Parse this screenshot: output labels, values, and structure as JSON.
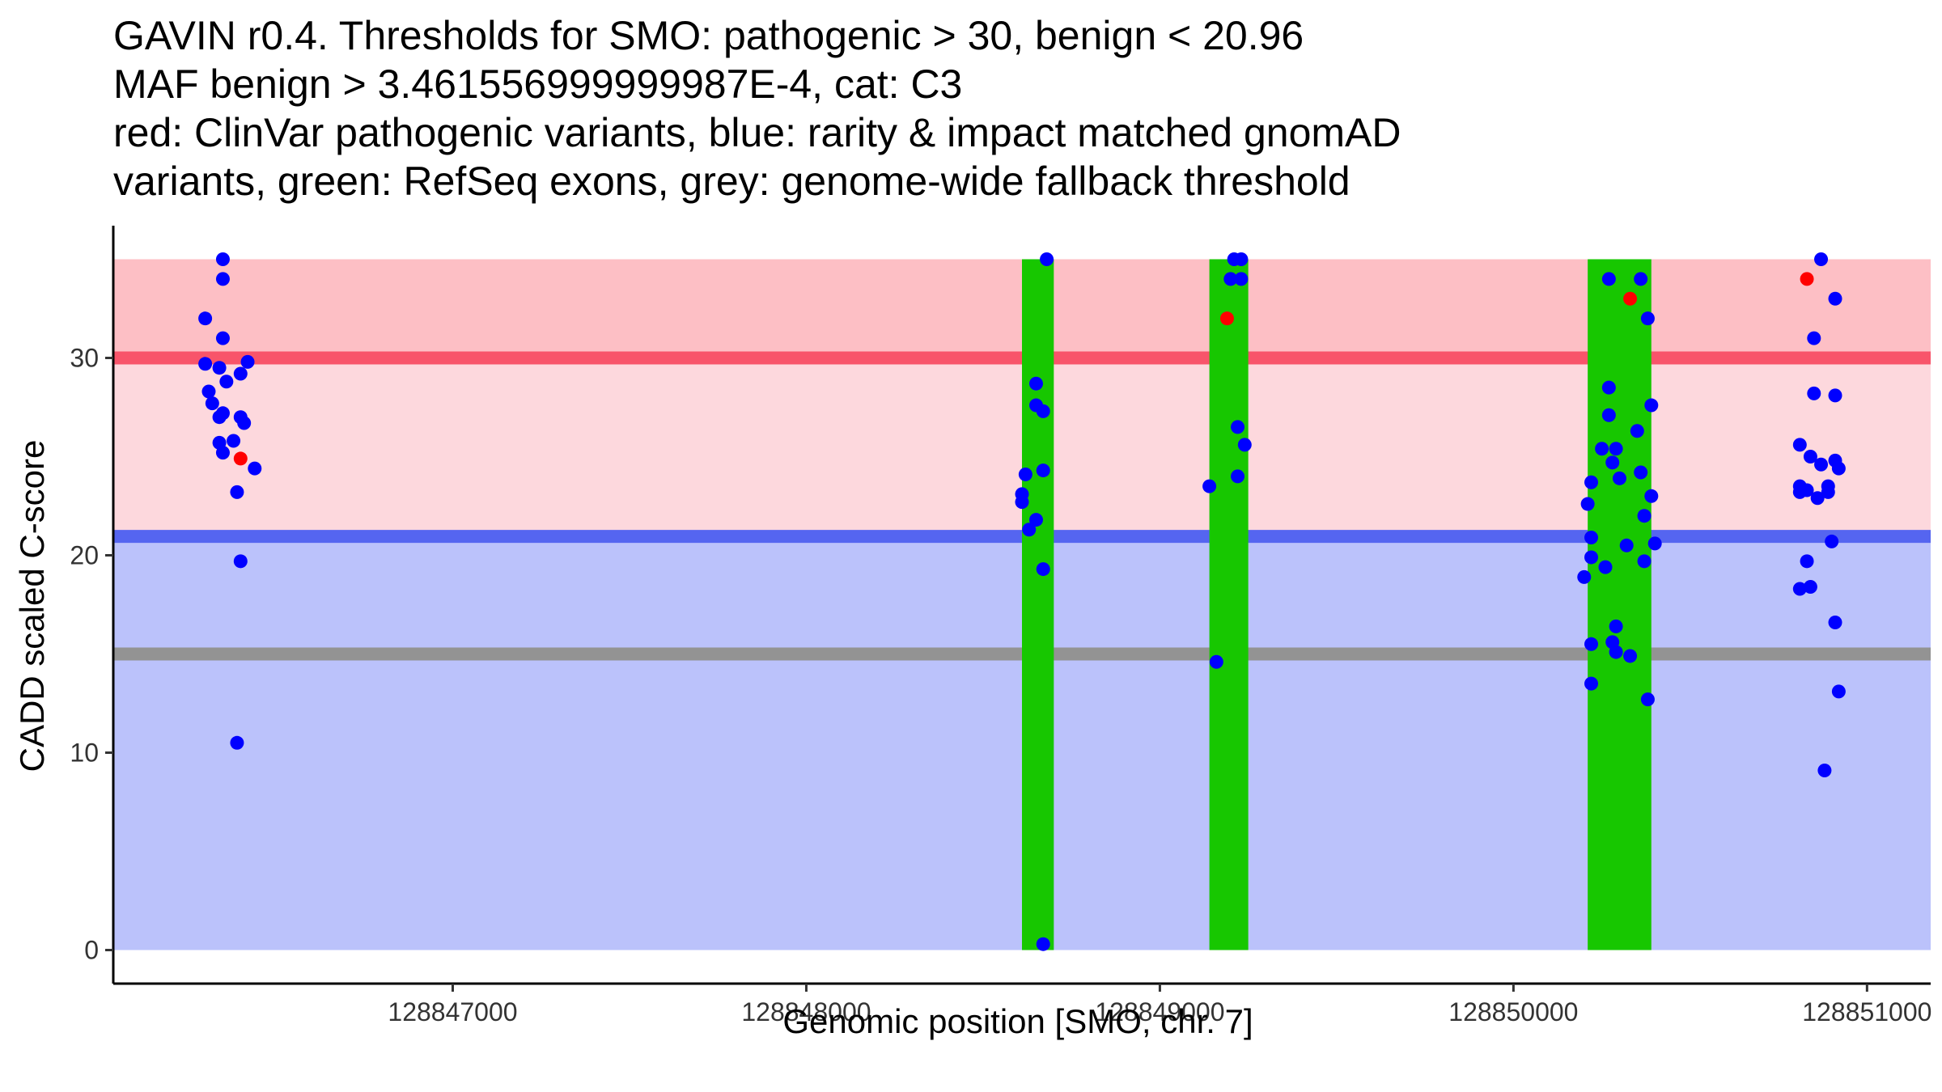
{
  "chart_data": {
    "type": "scatter",
    "title_lines": [
      "GAVIN r0.4. Thresholds for SMO: pathogenic > 30, benign < 20.96",
      "MAF benign > 3.461556999999987E-4, cat: C3",
      "red: ClinVar pathogenic variants, blue: rarity & impact matched gnomAD",
      "variants, green: RefSeq exons, grey: genome-wide fallback threshold"
    ],
    "xlabel": "Genomic position [SMO, chr. 7]",
    "ylabel": "CADD scaled C-score",
    "xlim": [
      128846040,
      128851180
    ],
    "ylim": [
      -1.7,
      36.7
    ],
    "x_ticks": [
      {
        "value": 128847000,
        "label": "128847000"
      },
      {
        "value": 128848000,
        "label": "128848000"
      },
      {
        "value": 128849000,
        "label": "128849000"
      },
      {
        "value": 128850000,
        "label": "128850000"
      },
      {
        "value": 128851000,
        "label": "128851000"
      }
    ],
    "y_ticks": [
      {
        "value": 0,
        "label": "0"
      },
      {
        "value": 10,
        "label": "10"
      },
      {
        "value": 20,
        "label": "20"
      },
      {
        "value": 30,
        "label": "30"
      }
    ],
    "thresholds": {
      "pathogenic": 30,
      "benign": 20.96,
      "fallback": 15,
      "max": 35
    },
    "colors": {
      "pathogenic_band": "#fdbfc5",
      "middle_band": "#fdd8dd",
      "benign_band": "#bbc2fb",
      "pathogenic_line": "#f8546a",
      "benign_line": "#5565f0",
      "fallback_line": "#939393",
      "exon": "#17c700",
      "gnomad_point": "#0000ff",
      "clinvar_point": "#ff0000"
    },
    "exons": [
      [
        128848610,
        128848700
      ],
      [
        128849140,
        128849250
      ],
      [
        128850210,
        128850390
      ]
    ],
    "series": [
      {
        "name": "gnomAD rarity & impact matched variants",
        "color": "#0000ff",
        "points": [
          [
            128846350,
            35
          ],
          [
            128846350,
            34
          ],
          [
            128846300,
            32
          ],
          [
            128846350,
            31
          ],
          [
            128846300,
            29.7
          ],
          [
            128846340,
            29.5
          ],
          [
            128846420,
            29.8
          ],
          [
            128846400,
            29.2
          ],
          [
            128846360,
            28.8
          ],
          [
            128846310,
            28.3
          ],
          [
            128846320,
            27.7
          ],
          [
            128846350,
            27.2
          ],
          [
            128846340,
            27
          ],
          [
            128846400,
            27
          ],
          [
            128846410,
            26.7
          ],
          [
            128846340,
            25.7
          ],
          [
            128846380,
            25.8
          ],
          [
            128846350,
            25.2
          ],
          [
            128846440,
            24.4
          ],
          [
            128846390,
            23.2
          ],
          [
            128846400,
            19.7
          ],
          [
            128846390,
            10.5
          ],
          [
            128848680,
            35
          ],
          [
            128848650,
            28.7
          ],
          [
            128848650,
            27.6
          ],
          [
            128848670,
            27.3
          ],
          [
            128848670,
            24.3
          ],
          [
            128848620,
            24.1
          ],
          [
            128848610,
            23.1
          ],
          [
            128848610,
            22.7
          ],
          [
            128848650,
            21.8
          ],
          [
            128848630,
            21.3
          ],
          [
            128848670,
            19.3
          ],
          [
            128848670,
            0.3
          ],
          [
            128849210,
            35
          ],
          [
            128849230,
            35
          ],
          [
            128849200,
            34
          ],
          [
            128849230,
            34
          ],
          [
            128849220,
            26.5
          ],
          [
            128849240,
            25.6
          ],
          [
            128849140,
            23.5
          ],
          [
            128849220,
            24
          ],
          [
            128849160,
            14.6
          ],
          [
            128850270,
            34
          ],
          [
            128850360,
            34
          ],
          [
            128850380,
            32
          ],
          [
            128850270,
            28.5
          ],
          [
            128850270,
            27.1
          ],
          [
            128850390,
            27.6
          ],
          [
            128850350,
            26.3
          ],
          [
            128850250,
            25.4
          ],
          [
            128850290,
            25.4
          ],
          [
            128850280,
            24.7
          ],
          [
            128850360,
            24.2
          ],
          [
            128850220,
            23.7
          ],
          [
            128850300,
            23.9
          ],
          [
            128850390,
            23
          ],
          [
            128850210,
            22.6
          ],
          [
            128850370,
            22
          ],
          [
            128850220,
            20.9
          ],
          [
            128850400,
            20.6
          ],
          [
            128850320,
            20.5
          ],
          [
            128850220,
            19.9
          ],
          [
            128850370,
            19.7
          ],
          [
            128850260,
            19.4
          ],
          [
            128850200,
            18.9
          ],
          [
            128850290,
            16.4
          ],
          [
            128850220,
            15.5
          ],
          [
            128850280,
            15.6
          ],
          [
            128850290,
            15.1
          ],
          [
            128850330,
            14.9
          ],
          [
            128850220,
            13.5
          ],
          [
            128850380,
            12.7
          ],
          [
            128850870,
            35
          ],
          [
            128850910,
            33
          ],
          [
            128850850,
            31
          ],
          [
            128850850,
            28.2
          ],
          [
            128850910,
            28.1
          ],
          [
            128850810,
            25.6
          ],
          [
            128850840,
            25
          ],
          [
            128850870,
            24.6
          ],
          [
            128850910,
            24.8
          ],
          [
            128850920,
            24.4
          ],
          [
            128850810,
            23.5
          ],
          [
            128850830,
            23.3
          ],
          [
            128850890,
            23.5
          ],
          [
            128850810,
            23.2
          ],
          [
            128850860,
            22.9
          ],
          [
            128850890,
            23.2
          ],
          [
            128850900,
            20.7
          ],
          [
            128850830,
            19.7
          ],
          [
            128850810,
            18.3
          ],
          [
            128850840,
            18.4
          ],
          [
            128850910,
            16.6
          ],
          [
            128850920,
            13.1
          ],
          [
            128850880,
            9.1
          ]
        ]
      },
      {
        "name": "ClinVar pathogenic variants",
        "color": "#ff0000",
        "points": [
          [
            128846400,
            24.9
          ],
          [
            128849190,
            32
          ],
          [
            128850330,
            33
          ],
          [
            128850830,
            34
          ]
        ]
      }
    ]
  }
}
